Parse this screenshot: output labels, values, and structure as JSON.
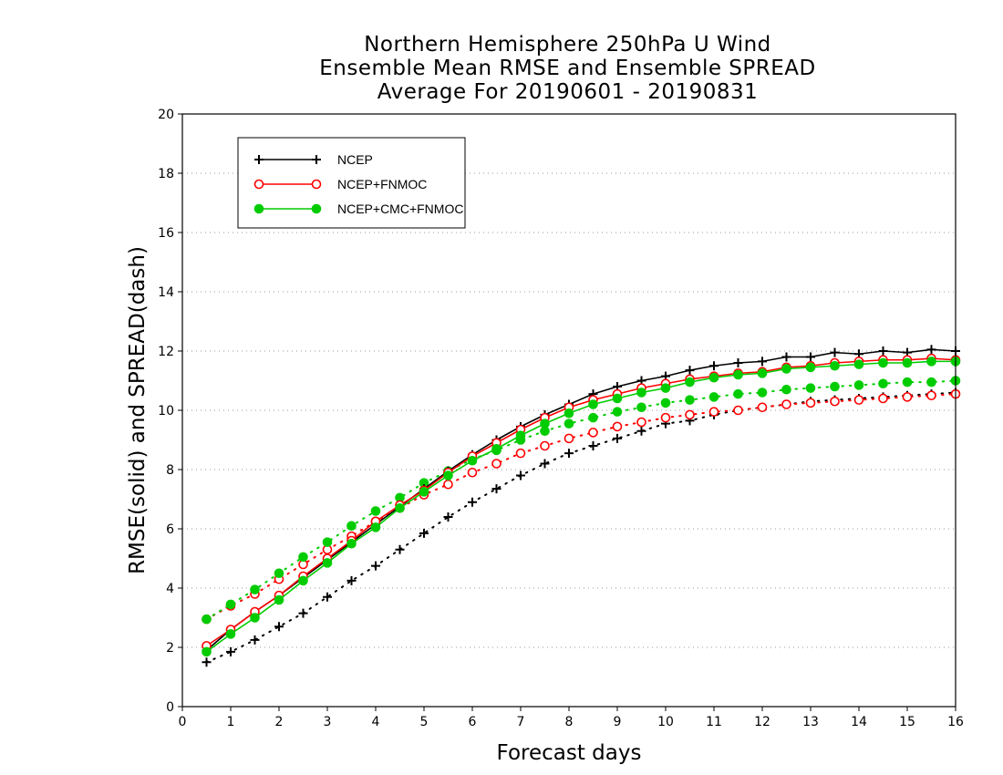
{
  "chart_data": {
    "type": "line",
    "title": [
      "Northern Hemisphere 250hPa U Wind",
      "Ensemble Mean RMSE and Ensemble SPREAD",
      "Average For 20190601 - 20190831"
    ],
    "xlabel": "Forecast days",
    "ylabel": "RMSE(solid) and SPREAD(dash)",
    "xlim": [
      0,
      16
    ],
    "ylim": [
      0,
      20
    ],
    "xticks": [
      0,
      1,
      2,
      3,
      4,
      5,
      6,
      7,
      8,
      9,
      10,
      11,
      12,
      13,
      14,
      15,
      16
    ],
    "yticks": [
      0,
      2,
      4,
      6,
      8,
      10,
      12,
      14,
      16,
      18,
      20
    ],
    "grid": true,
    "legend_position": "top-left",
    "x": [
      0.5,
      1,
      1.5,
      2,
      2.5,
      3,
      3.5,
      4,
      4.5,
      5,
      5.5,
      6,
      6.5,
      7,
      7.5,
      8,
      8.5,
      9,
      9.5,
      10,
      10.5,
      11,
      11.5,
      12,
      12.5,
      13,
      13.5,
      14,
      14.5,
      15,
      15.5,
      16
    ],
    "series": [
      {
        "name": "NCEP",
        "kind": "rmse",
        "style": "solid",
        "marker": "plus",
        "color": "#000000",
        "values": [
          1.9,
          2.6,
          3.2,
          3.75,
          4.35,
          4.95,
          5.55,
          6.15,
          6.75,
          7.35,
          7.95,
          8.5,
          9.0,
          9.45,
          9.85,
          10.2,
          10.55,
          10.8,
          11.0,
          11.15,
          11.35,
          11.5,
          11.6,
          11.65,
          11.8,
          11.8,
          11.95,
          11.9,
          12.0,
          11.95,
          12.05,
          12.0
        ]
      },
      {
        "name": "NCEP",
        "kind": "spread",
        "style": "dotted",
        "marker": "plus",
        "color": "#000000",
        "values": [
          1.5,
          1.85,
          2.25,
          2.7,
          3.15,
          3.7,
          4.25,
          4.75,
          5.3,
          5.85,
          6.4,
          6.9,
          7.35,
          7.8,
          8.2,
          8.55,
          8.8,
          9.05,
          9.3,
          9.55,
          9.65,
          9.85,
          10.0,
          10.1,
          10.2,
          10.3,
          10.35,
          10.4,
          10.45,
          10.5,
          10.55,
          10.6
        ]
      },
      {
        "name": "NCEP+FNMOC",
        "kind": "rmse",
        "style": "solid",
        "marker": "circle-open",
        "color": "#ff0000",
        "values": [
          2.05,
          2.6,
          3.2,
          3.75,
          4.4,
          5.0,
          5.6,
          6.25,
          6.8,
          7.3,
          7.9,
          8.45,
          8.9,
          9.35,
          9.75,
          10.1,
          10.35,
          10.55,
          10.75,
          10.9,
          11.05,
          11.15,
          11.25,
          11.3,
          11.45,
          11.5,
          11.6,
          11.65,
          11.7,
          11.7,
          11.75,
          11.7
        ]
      },
      {
        "name": "NCEP+FNMOC",
        "kind": "spread",
        "style": "dotted",
        "marker": "circle-open",
        "color": "#ff0000",
        "values": [
          2.95,
          3.4,
          3.8,
          4.3,
          4.8,
          5.3,
          5.75,
          6.25,
          6.7,
          7.15,
          7.5,
          7.9,
          8.2,
          8.55,
          8.8,
          9.05,
          9.25,
          9.45,
          9.6,
          9.75,
          9.85,
          9.95,
          10.0,
          10.1,
          10.2,
          10.25,
          10.3,
          10.35,
          10.4,
          10.45,
          10.5,
          10.55
        ]
      },
      {
        "name": "NCEP+CMC+FNMOC",
        "kind": "rmse",
        "style": "solid",
        "marker": "circle-filled",
        "color": "#00cc00",
        "values": [
          1.85,
          2.45,
          3.0,
          3.6,
          4.25,
          4.85,
          5.5,
          6.05,
          6.7,
          7.25,
          7.8,
          8.3,
          8.7,
          9.15,
          9.55,
          9.9,
          10.2,
          10.4,
          10.6,
          10.75,
          10.95,
          11.1,
          11.2,
          11.25,
          11.4,
          11.45,
          11.5,
          11.55,
          11.6,
          11.6,
          11.65,
          11.65
        ]
      },
      {
        "name": "NCEP+CMC+FNMOC",
        "kind": "spread",
        "style": "dotted",
        "marker": "circle-filled",
        "color": "#00cc00",
        "values": [
          2.95,
          3.45,
          3.95,
          4.5,
          5.05,
          5.55,
          6.1,
          6.6,
          7.05,
          7.55,
          7.95,
          8.35,
          8.65,
          9.0,
          9.3,
          9.55,
          9.75,
          9.95,
          10.1,
          10.25,
          10.35,
          10.45,
          10.55,
          10.6,
          10.7,
          10.75,
          10.8,
          10.85,
          10.9,
          10.95,
          10.95,
          11.0
        ]
      }
    ],
    "legend": [
      {
        "label": "NCEP",
        "marker": "plus",
        "color": "#000000"
      },
      {
        "label": "NCEP+FNMOC",
        "marker": "circle-open",
        "color": "#ff0000"
      },
      {
        "label": "NCEP+CMC+FNMOC",
        "marker": "circle-filled",
        "color": "#00cc00"
      }
    ]
  }
}
